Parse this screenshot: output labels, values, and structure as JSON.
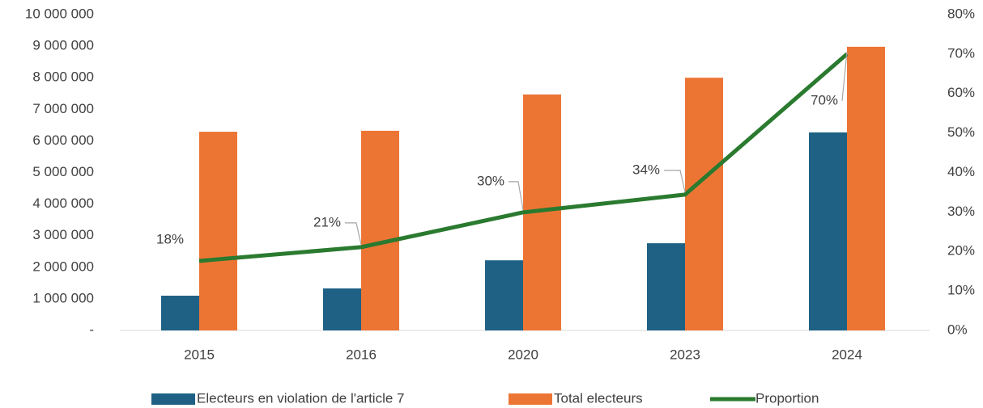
{
  "chart_data": {
    "type": "bar-line",
    "categories": [
      "2015",
      "2016",
      "2020",
      "2023",
      "2024"
    ],
    "series": [
      {
        "name": "Electeurs en violation de l'article 7",
        "type": "bar",
        "color": "#1f6185",
        "values": [
          1100000,
          1330000,
          2220000,
          2760000,
          6270000
        ]
      },
      {
        "name": "Total electeurs",
        "type": "bar",
        "color": "#ed7534",
        "values": [
          6290000,
          6320000,
          7470000,
          8000000,
          8980000
        ]
      },
      {
        "name": "Proportion",
        "type": "line",
        "axis": "y2",
        "color": "#2a7a2f",
        "values": [
          17.6,
          21.1,
          29.9,
          34.4,
          70
        ],
        "value_labels": [
          "18%",
          "21%",
          "30%",
          "34%",
          "70%"
        ]
      }
    ],
    "ylim": [
      0,
      10000000
    ],
    "yticks": [
      {
        "value": 0,
        "label": "-"
      },
      {
        "value": 1000000,
        "label": "1 000 000"
      },
      {
        "value": 2000000,
        "label": "2 000 000"
      },
      {
        "value": 3000000,
        "label": "3 000 000"
      },
      {
        "value": 4000000,
        "label": "4 000 000"
      },
      {
        "value": 5000000,
        "label": "5 000 000"
      },
      {
        "value": 6000000,
        "label": "6 000 000"
      },
      {
        "value": 7000000,
        "label": "7 000 000"
      },
      {
        "value": 8000000,
        "label": "8 000 000"
      },
      {
        "value": 9000000,
        "label": "9 000 000"
      },
      {
        "value": 10000000,
        "label": "10 000 000"
      }
    ],
    "y2lim": [
      0,
      80
    ],
    "y2ticks": [
      {
        "value": 0,
        "label": "0%"
      },
      {
        "value": 10,
        "label": "10%"
      },
      {
        "value": 20,
        "label": "20%"
      },
      {
        "value": 30,
        "label": "30%"
      },
      {
        "value": 40,
        "label": "40%"
      },
      {
        "value": 50,
        "label": "50%"
      },
      {
        "value": 60,
        "label": "60%"
      },
      {
        "value": 70,
        "label": "70%"
      },
      {
        "value": 80,
        "label": "80%"
      }
    ],
    "grid": false,
    "legend": "bottom"
  }
}
